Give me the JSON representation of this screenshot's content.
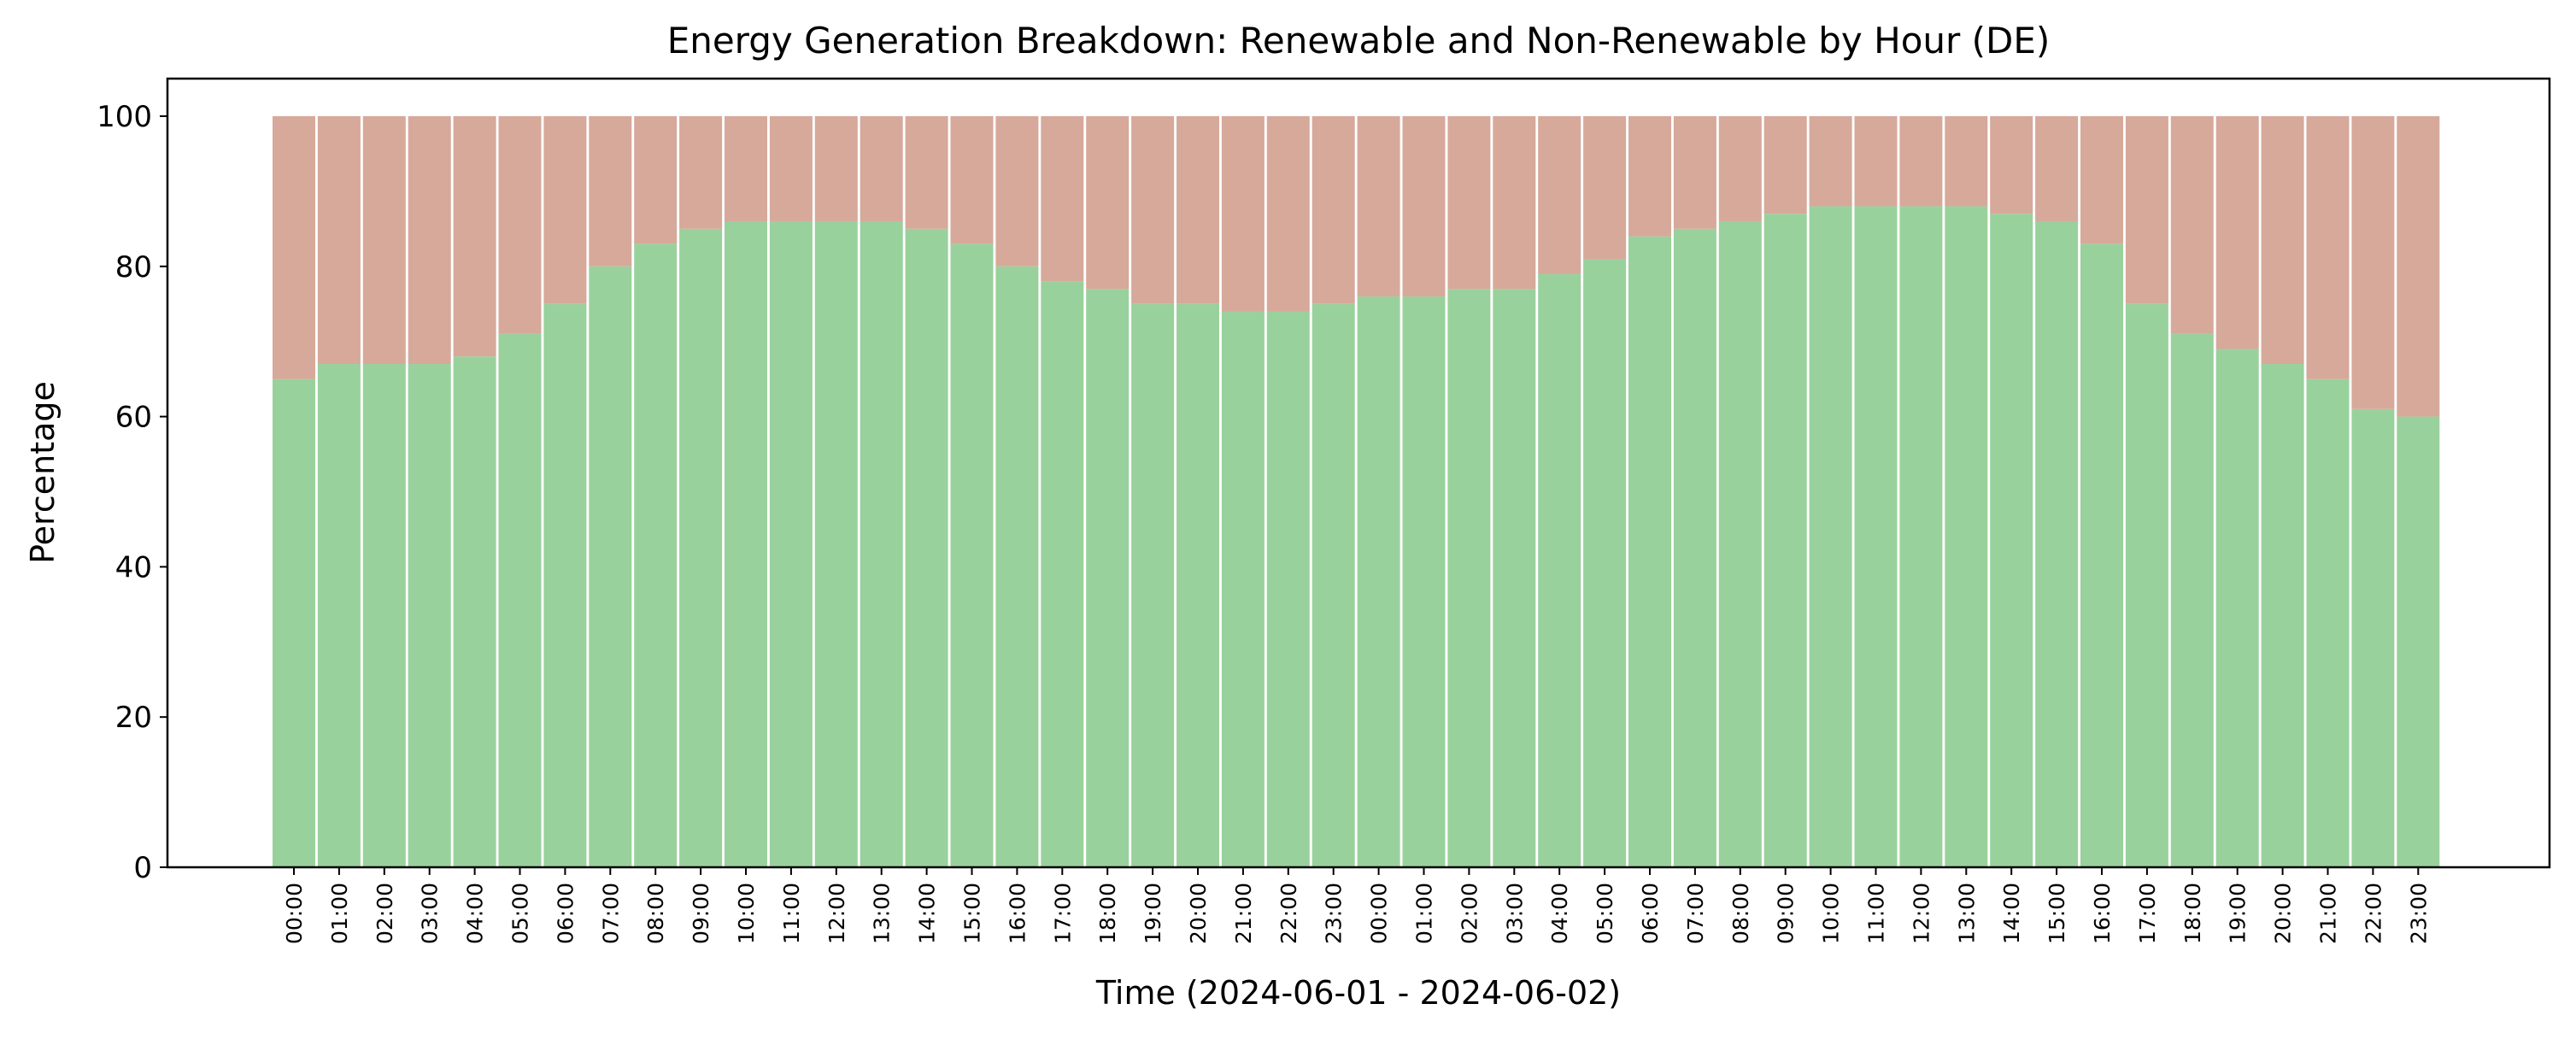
{
  "chart_data": {
    "type": "bar",
    "stacked": true,
    "title": "Energy Generation Breakdown: Renewable and Non-Renewable by Hour (DE)",
    "xlabel": "Time (2024-06-01 - 2024-06-02)",
    "ylabel": "Percentage",
    "ylim": [
      0,
      105
    ],
    "yticks": [
      0,
      20,
      40,
      60,
      80,
      100
    ],
    "grid": false,
    "legend": false,
    "categories": [
      "00:00",
      "01:00",
      "02:00",
      "03:00",
      "04:00",
      "05:00",
      "06:00",
      "07:00",
      "08:00",
      "09:00",
      "10:00",
      "11:00",
      "12:00",
      "13:00",
      "14:00",
      "15:00",
      "16:00",
      "17:00",
      "18:00",
      "19:00",
      "20:00",
      "21:00",
      "22:00",
      "23:00",
      "00:00",
      "01:00",
      "02:00",
      "03:00",
      "04:00",
      "05:00",
      "06:00",
      "07:00",
      "08:00",
      "09:00",
      "10:00",
      "11:00",
      "12:00",
      "13:00",
      "14:00",
      "15:00",
      "16:00",
      "17:00",
      "18:00",
      "19:00",
      "20:00",
      "21:00",
      "22:00",
      "23:00"
    ],
    "series": [
      {
        "color": "#99d19c",
        "values": [
          65,
          67,
          67,
          67,
          68,
          71,
          75,
          80,
          83,
          85,
          86,
          86,
          86,
          86,
          85,
          83,
          80,
          78,
          77,
          75,
          75,
          74,
          74,
          75,
          76,
          76,
          77,
          77,
          79,
          81,
          84,
          85,
          86,
          87,
          88,
          88,
          88,
          88,
          87,
          86,
          83,
          75,
          71,
          69,
          67,
          65,
          61,
          60
        ]
      },
      {
        "color": "#d6a99b",
        "values": [
          35,
          33,
          33,
          33,
          32,
          29,
          25,
          20,
          17,
          15,
          14,
          14,
          14,
          14,
          15,
          17,
          20,
          22,
          23,
          25,
          25,
          26,
          26,
          25,
          24,
          24,
          23,
          23,
          21,
          19,
          16,
          15,
          14,
          13,
          12,
          12,
          12,
          12,
          13,
          14,
          17,
          25,
          29,
          31,
          33,
          35,
          39,
          40
        ]
      }
    ]
  }
}
